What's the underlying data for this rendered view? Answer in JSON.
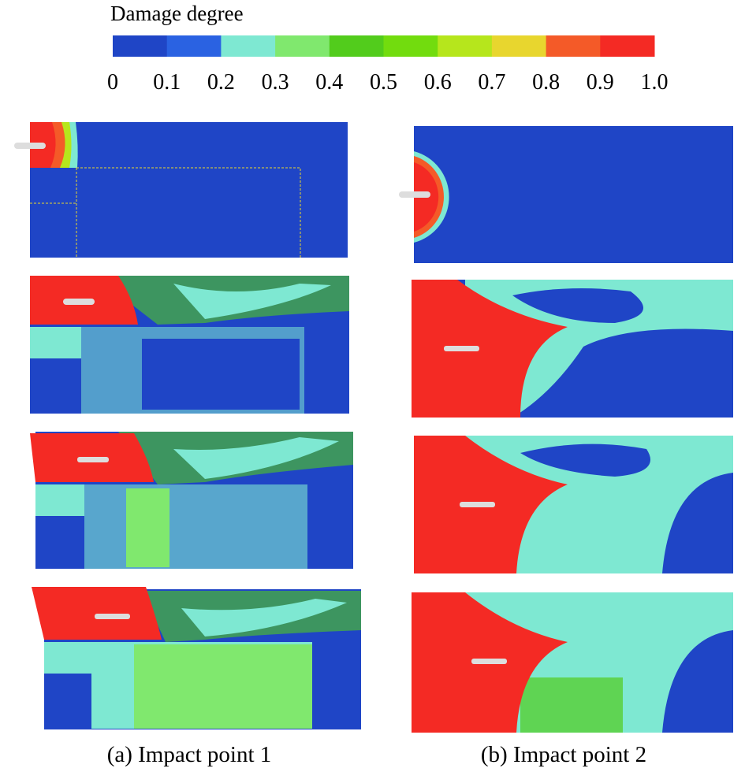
{
  "colorbar": {
    "title": "Damage degree",
    "colors": [
      "#1f45c6",
      "#2a62e2",
      "#7ee8d2",
      "#80e86e",
      "#52cc1c",
      "#72dc0e",
      "#b6e61c",
      "#e8d62e",
      "#f45a28",
      "#f42a24"
    ],
    "ticks": [
      "0",
      "0.1",
      "0.2",
      "0.3",
      "0.4",
      "0.5",
      "0.6",
      "0.7",
      "0.8",
      "0.9",
      "1.0"
    ]
  },
  "captions": [
    "(a) Impact point 1",
    "(b) Impact point 2"
  ]
}
